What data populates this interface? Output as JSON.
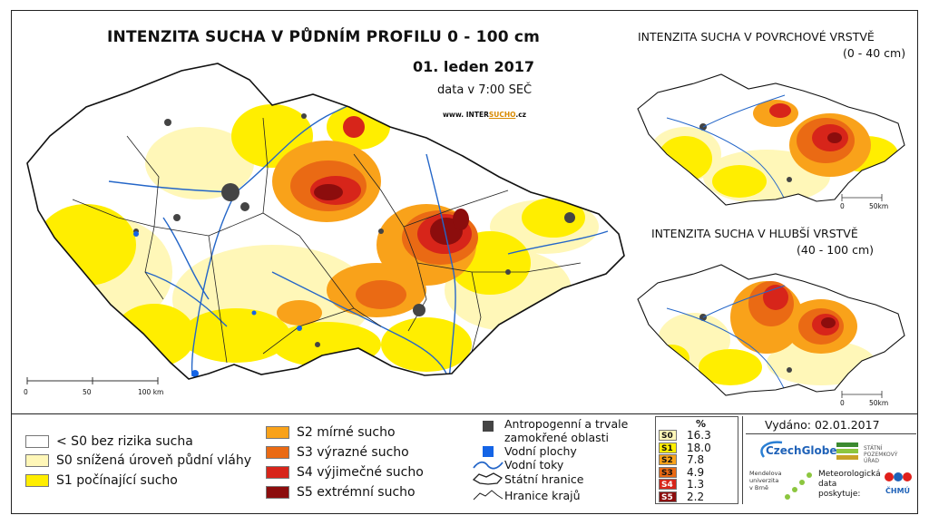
{
  "map": {
    "title": "INTENZITA SUCHA V PŮDNÍM PROFILU 0 - 100 cm",
    "date": "01. leden 2017",
    "time": "data v 7:00 SEČ",
    "website_prefix": "www. INTER",
    "website_highlight": "SUCHO",
    "website_suffix": ".cz",
    "scale": {
      "tick0": "0",
      "tick1": "50",
      "tick2": "100 km"
    }
  },
  "inset_surface": {
    "title": "INTENZITA SUCHA V POVRCHOVÉ VRSTVĚ",
    "subtitle": "(0 - 40 cm)",
    "scale": {
      "tick0": "0",
      "tick1": "50km"
    }
  },
  "inset_deep": {
    "title": "INTENZITA SUCHA V HLUBŠÍ VRSTVĚ",
    "subtitle": "(40 - 100 cm)",
    "scale": {
      "tick0": "0",
      "tick1": "50km"
    }
  },
  "legend": {
    "classes": [
      {
        "label": "< S0 bez rizika sucha",
        "color": "#ffffff"
      },
      {
        "label": "S0 snížená úroveň půdní vláhy",
        "color": "#fff7b8"
      },
      {
        "label": "S1 počínající sucho",
        "color": "#ffee00"
      },
      {
        "label": "S2 mírné sucho",
        "color": "#f9a21a"
      },
      {
        "label": "S3 výrazné sucho",
        "color": "#ea6a14"
      },
      {
        "label": "S4 výjimečné sucho",
        "color": "#d7251a"
      },
      {
        "label": "S5 extrémní sucho",
        "color": "#8c0d0d"
      }
    ],
    "features": [
      {
        "label": "Antropogenní a trvale zamokřené oblasti",
        "line1": "Antropogenní a trvale",
        "line2": "zamokřené oblasti",
        "color": "#444444"
      },
      {
        "label": "Vodní plochy",
        "color": "#1464e6"
      },
      {
        "label": "Vodní toky",
        "color": "#2466c8"
      },
      {
        "label": "Státní hranice",
        "color": "#222222"
      },
      {
        "label": "Hranice krajů",
        "color": "#222222"
      }
    ]
  },
  "stats": {
    "header": "%",
    "rows": [
      {
        "cls": "S0",
        "value": "16.3",
        "color": "#fff7b8"
      },
      {
        "cls": "S1",
        "value": "18.0",
        "color": "#ffee00"
      },
      {
        "cls": "S2",
        "value": "7.8",
        "color": "#f9a21a"
      },
      {
        "cls": "S3",
        "value": "4.9",
        "color": "#ea6a14"
      },
      {
        "cls": "S4",
        "value": "1.3",
        "color": "#d7251a"
      },
      {
        "cls": "S5",
        "value": "2.2",
        "color": "#8c0d0d"
      }
    ]
  },
  "issued": "Vydáno: 02.01.2017",
  "logos": {
    "czechglobe": "CzechGlobe",
    "spu_line1": "STÁTNÍ",
    "spu_line2": "POZEMKOVÝ ÚŘAD",
    "mendel_1": "Mendelova",
    "mendel_2": "univerzita",
    "mendel_3": "v Brně",
    "meteo_1": "Meteorologická",
    "meteo_2": "data",
    "meteo_3": "poskytuje:",
    "chmu": "ČHMÚ"
  }
}
